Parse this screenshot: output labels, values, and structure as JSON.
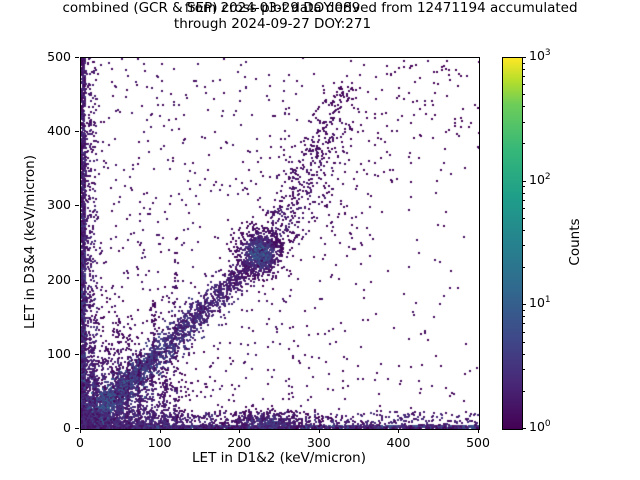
{
  "chart_data": {
    "type": "heatmap",
    "subtype": "2d-histogram cross plot, log-color scatter density",
    "title_lines": [
      "combined (GCR & SEP) cross plot data derived from 12471194 accumulated",
      "from 2024-03-29 DOY:089",
      "through 2024-09-27 DOY:271"
    ],
    "accumulated_count": 12471194,
    "date_from": "2024-03-29",
    "doy_from": "089",
    "date_through": "2024-09-27",
    "doy_through": "271",
    "xlabel": "LET in D1&2 (keV/micron)",
    "ylabel": "LET in D3&4 (keV/micron)",
    "xlim": [
      0,
      500
    ],
    "ylim": [
      0,
      500
    ],
    "x_ticks": [
      0,
      100,
      200,
      300,
      400,
      500
    ],
    "y_ticks": [
      0,
      100,
      200,
      300,
      400,
      500
    ],
    "grid": false,
    "background": "#ffffff",
    "colorbar": {
      "label": "Counts",
      "scale": "log",
      "range": [
        1,
        1000
      ],
      "major_tick_exponents": [
        3,
        2,
        1,
        0
      ],
      "minor_mantissas": [
        2,
        3,
        4,
        5,
        6,
        7,
        8,
        9
      ],
      "colormap": "viridis",
      "position": "right"
    },
    "render": {
      "seed": 42,
      "point_size": 2
    },
    "density_features": [
      {
        "type": "blob",
        "label": "origin-hotspot-core",
        "cx": 2,
        "cy": 2,
        "sx": 6,
        "sy": 6,
        "n": 900,
        "v0": 3.0
      },
      {
        "type": "blob",
        "label": "origin-halo",
        "cx": 5,
        "cy": 5,
        "sx": 22,
        "sy": 22,
        "n": 1800,
        "v0": 1.2
      },
      {
        "type": "blob",
        "label": "lower-left-cloud",
        "cx": 20,
        "cy": 20,
        "sx": 55,
        "sy": 55,
        "n": 2600,
        "v0": 0.55
      },
      {
        "type": "band",
        "label": "bright-diagonal-streak",
        "x0": 0,
        "y0": 0,
        "x1": 95,
        "y1": 100,
        "sigma": 2.5,
        "n": 500,
        "v0": 1.9,
        "v1": 0.4,
        "tpow": 1.2
      },
      {
        "type": "band",
        "label": "main-diagonal-band",
        "x0": 0,
        "y0": 0,
        "x1": 248,
        "y1": 258,
        "sigma": 9,
        "n": 2400,
        "v0": 0.9,
        "v1": 0.15,
        "tpow": 1.4
      },
      {
        "type": "blob",
        "label": "diagonal-knot-cluster",
        "cx": 224,
        "cy": 236,
        "sx": 14,
        "sy": 16,
        "n": 800,
        "v0": 0.85
      },
      {
        "type": "band",
        "label": "upper-diagonal-continuation",
        "x0": 248,
        "y0": 258,
        "x1": 335,
        "y1": 465,
        "sigma": 13,
        "n": 380,
        "v0": 0.3,
        "v1": 0.05,
        "tpow": 1.1
      },
      {
        "type": "band",
        "label": "upper-right-fan",
        "x0": 255,
        "y0": 265,
        "x1": 470,
        "y1": 490,
        "sigma": 45,
        "n": 230,
        "v0": 0.12,
        "v1": 0.02,
        "tpow": 1.3
      },
      {
        "type": "rect",
        "label": "left-edge-column",
        "x0": 0,
        "x1": 5,
        "y0": 0,
        "y1": 500,
        "n": 1300,
        "v0": 0.9,
        "ypow": 1.8,
        "yfade": 0.6
      },
      {
        "type": "rect",
        "label": "left-edge-halo",
        "x0": 0,
        "x1": 20,
        "y0": 0,
        "y1": 500,
        "n": 900,
        "v0": 0.45,
        "xpow": 2.2,
        "ypow": 1.7,
        "yfade": 0.5
      },
      {
        "type": "rect",
        "label": "bottom-edge-strip",
        "x0": 0,
        "x1": 500,
        "y0": 0,
        "y1": 4,
        "n": 1600,
        "v0": 0.8,
        "xpow": 1.4
      },
      {
        "type": "rect",
        "label": "bottom-halo",
        "x0": 0,
        "x1": 500,
        "y0": 0,
        "y1": 22,
        "n": 1200,
        "v0": 0.4,
        "xpow": 1.8,
        "ypow": 1.8
      },
      {
        "type": "blob",
        "label": "bottom-cluster-250",
        "cx": 232,
        "cy": 8,
        "sx": 26,
        "sy": 9,
        "n": 420,
        "v0": 0.55
      },
      {
        "type": "band",
        "label": "vertical-streak-45",
        "x0": 45,
        "y0": 0,
        "x1": 47,
        "y1": 150,
        "sigma": 1.5,
        "n": 90,
        "v0": 0.5,
        "v1": 0.1,
        "tpow": 1.5
      },
      {
        "type": "band",
        "label": "vertical-streak-58",
        "x0": 57,
        "y0": 0,
        "x1": 60,
        "y1": 120,
        "sigma": 1.5,
        "n": 70,
        "v0": 0.45,
        "v1": 0.1,
        "tpow": 1.5
      },
      {
        "type": "band",
        "label": "vertical-streak-72",
        "x0": 71,
        "y0": 0,
        "x1": 73,
        "y1": 105,
        "sigma": 1.2,
        "n": 60,
        "v0": 0.4,
        "v1": 0.1,
        "tpow": 1.5
      },
      {
        "type": "band",
        "label": "vertical-streak-89",
        "x0": 88,
        "y0": 0,
        "x1": 91,
        "y1": 170,
        "sigma": 1.8,
        "n": 85,
        "v0": 0.45,
        "v1": 0.08,
        "tpow": 1.5
      },
      {
        "type": "band",
        "label": "vertical-streak-105",
        "x0": 104,
        "y0": 0,
        "x1": 107,
        "y1": 95,
        "sigma": 1.5,
        "n": 55,
        "v0": 0.4,
        "v1": 0.1,
        "tpow": 1.5
      },
      {
        "type": "band",
        "label": "vertical-streak-118",
        "x0": 117,
        "y0": 0,
        "x1": 119,
        "y1": 260,
        "sigma": 1.8,
        "n": 70,
        "v0": 0.35,
        "v1": 0.05,
        "tpow": 1.5
      },
      {
        "type": "rect",
        "label": "sparse-background-left",
        "x0": 0,
        "x1": 260,
        "y0": 0,
        "y1": 500,
        "n": 650,
        "v0": 0.18,
        "xpow": 1.3,
        "ypow": 1.15
      },
      {
        "type": "rect",
        "label": "sparse-background-right",
        "x0": 260,
        "x1": 500,
        "y0": 0,
        "y1": 500,
        "n": 260,
        "v0": 0.12,
        "xpow": 1.5,
        "ypow": 1.6
      }
    ]
  },
  "colors": {
    "foreground": "#000000",
    "background": "#ffffff",
    "viridis_anchors": [
      [
        0.0,
        "#440154"
      ],
      [
        0.125,
        "#482878"
      ],
      [
        0.25,
        "#3e4a89"
      ],
      [
        0.375,
        "#31688e"
      ],
      [
        0.5,
        "#26828e"
      ],
      [
        0.625,
        "#1f9e89"
      ],
      [
        0.75,
        "#35b779"
      ],
      [
        0.875,
        "#6dcd59"
      ],
      [
        0.9375,
        "#b4de2c"
      ],
      [
        1.0,
        "#fde725"
      ]
    ]
  }
}
